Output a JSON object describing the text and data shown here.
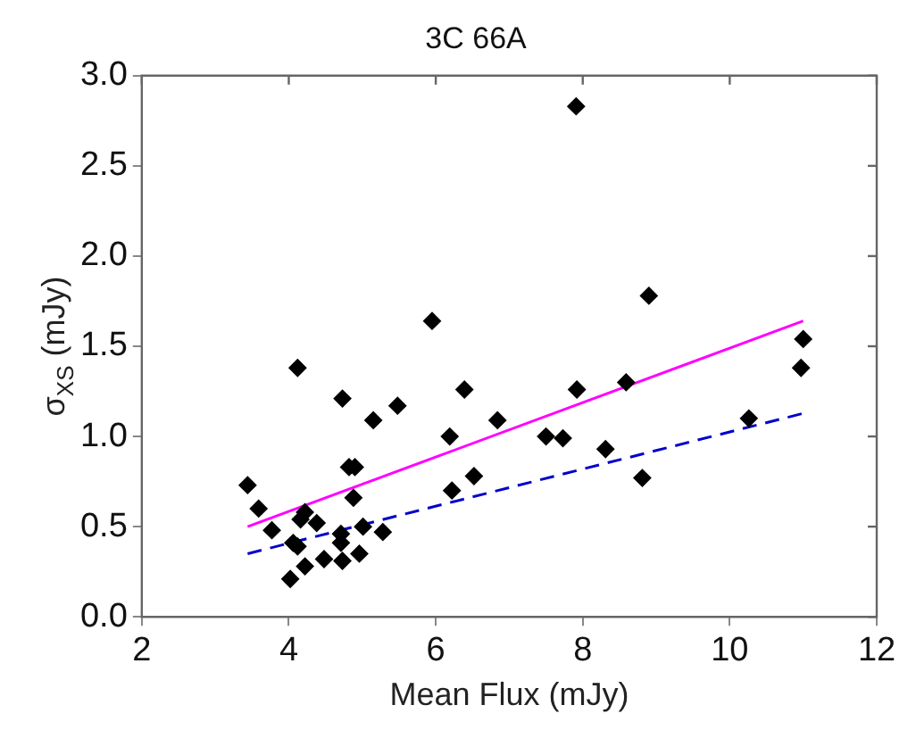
{
  "chart_data": {
    "type": "scatter",
    "title": "3C 66A",
    "xlabel": "Mean Flux (mJy)",
    "ylabel": "σ$_{XS}$ (mJy)",
    "xlim": [
      2,
      12
    ],
    "xticks": [
      2,
      4,
      6,
      8,
      10,
      12
    ],
    "ylim": [
      0,
      3
    ],
    "yticks": [
      {
        "value": 0,
        "label": "0.0"
      },
      {
        "value": 0.5,
        "label": "0.5"
      },
      {
        "value": 1,
        "label": "1.0"
      },
      {
        "value": 1.5,
        "label": "1.5"
      },
      {
        "value": 2,
        "label": "2.0"
      },
      {
        "value": 2.5,
        "label": "2.5"
      },
      {
        "value": 3,
        "label": "3.0"
      }
    ],
    "grid": false,
    "legend": false,
    "marker": "diamond",
    "series": [
      {
        "type": "scatter",
        "color": "#000000",
        "x": [
          3.44,
          3.59,
          3.77,
          4.02,
          4.06,
          4.12,
          4.12,
          4.16,
          4.22,
          4.22,
          4.38,
          4.48,
          4.71,
          4.71,
          4.73,
          4.73,
          4.82,
          4.9,
          4.88,
          4.96,
          5.01,
          5.15,
          5.28,
          5.48,
          5.95,
          6.19,
          6.22,
          6.39,
          6.52,
          6.84,
          7.5,
          7.73,
          7.91,
          7.92,
          8.31,
          8.59,
          8.81,
          8.9,
          10.26,
          10.97,
          11.0
        ],
        "values": [
          0.73,
          0.6,
          0.48,
          0.21,
          0.41,
          0.39,
          1.38,
          0.54,
          0.58,
          0.28,
          0.52,
          0.32,
          0.46,
          0.41,
          1.21,
          0.31,
          0.83,
          0.83,
          0.66,
          0.35,
          0.5,
          1.09,
          0.47,
          1.17,
          1.64,
          1.0,
          0.7,
          1.26,
          0.78,
          1.09,
          1.0,
          0.99,
          2.83,
          1.26,
          0.93,
          1.3,
          0.77,
          1.78,
          1.1,
          1.38,
          1.54
        ]
      },
      {
        "type": "line",
        "color": "#ff00ff",
        "x": [
          3.44,
          11.0
        ],
        "values": [
          0.5,
          1.64
        ],
        "marker": "none",
        "line_style": "solid"
      },
      {
        "type": "line",
        "color": "#0000cc",
        "x": [
          3.44,
          11.02
        ],
        "values": [
          0.35,
          1.13
        ],
        "marker": "none",
        "line_style": "dashed"
      }
    ]
  }
}
